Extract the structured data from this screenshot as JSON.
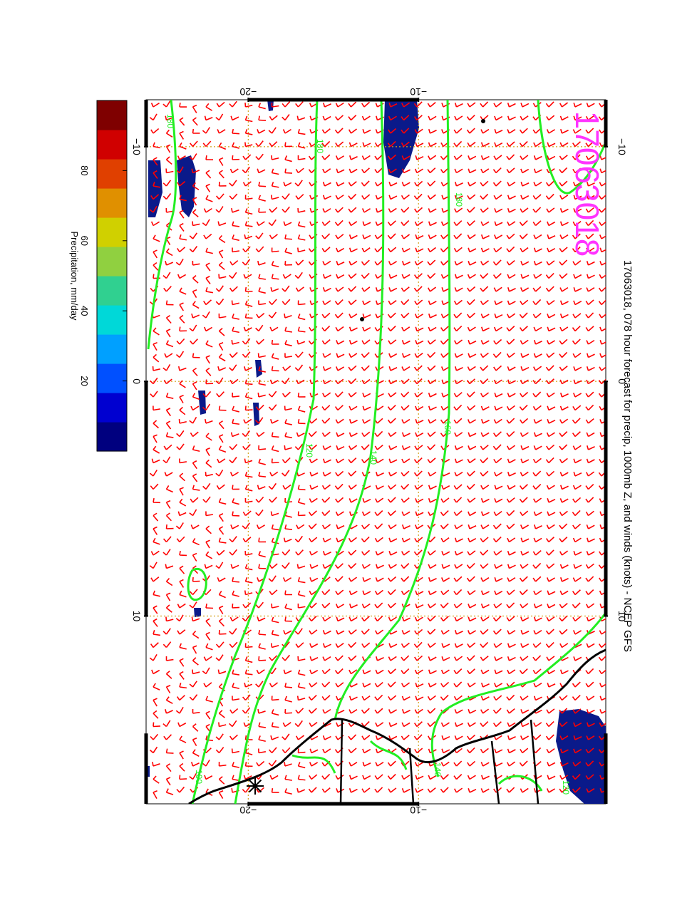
{
  "figure": {
    "title": "17063018, 078 hour forecast for precip, 1000mb Z, and winds (knots) - NCEP GFS",
    "stamp": "17063018",
    "stamp_color": "#ff33ff",
    "orientation": "rotated 90 degrees clockwise (landscape map printed on portrait page)"
  },
  "map": {
    "lon_range": [
      -12,
      18
    ],
    "lat_range": [
      -26,
      1
    ],
    "lon_ticks": [
      -10,
      0,
      10
    ],
    "lat_ticks": [
      -20,
      -10
    ],
    "lon_tick_labels": [
      "−10",
      "0",
      "10"
    ],
    "lat_tick_labels": [
      "−20",
      "−10"
    ],
    "grid_color": "#d4a017",
    "barb_color": "#ff0000",
    "contour_color": "#22ee22",
    "coast_color": "#000000",
    "contour_labels": [
      "180",
      "180",
      "180",
      "160",
      "140",
      "120",
      "100",
      "140",
      "120"
    ],
    "station_marker": "asterisk"
  },
  "colorbar": {
    "label": "Precipitation, mm/day",
    "ticks": [
      "20",
      "40",
      "60",
      "80"
    ],
    "range": [
      0,
      100
    ],
    "colors": [
      "#00007f",
      "#0000d0",
      "#0050ff",
      "#00a0ff",
      "#00d8d8",
      "#30d090",
      "#90d040",
      "#d0d000",
      "#e09000",
      "#e04000",
      "#d00000",
      "#7f0000"
    ]
  }
}
